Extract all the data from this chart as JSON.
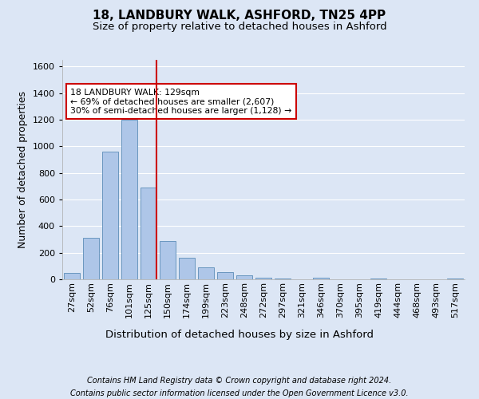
{
  "title": "18, LANDBURY WALK, ASHFORD, TN25 4PP",
  "subtitle": "Size of property relative to detached houses in Ashford",
  "xlabel": "Distribution of detached houses by size in Ashford",
  "ylabel": "Number of detached properties",
  "footnote1": "Contains HM Land Registry data © Crown copyright and database right 2024.",
  "footnote2": "Contains public sector information licensed under the Open Government Licence v3.0.",
  "bar_labels": [
    "27sqm",
    "52sqm",
    "76sqm",
    "101sqm",
    "125sqm",
    "150sqm",
    "174sqm",
    "199sqm",
    "223sqm",
    "248sqm",
    "272sqm",
    "297sqm",
    "321sqm",
    "346sqm",
    "370sqm",
    "395sqm",
    "419sqm",
    "444sqm",
    "468sqm",
    "493sqm",
    "517sqm"
  ],
  "bar_values": [
    50,
    310,
    960,
    1200,
    690,
    290,
    160,
    90,
    55,
    30,
    15,
    5,
    0,
    15,
    0,
    0,
    5,
    0,
    0,
    0,
    5
  ],
  "bar_color": "#aec6e8",
  "bar_edge_color": "#5b8db8",
  "highlight_index": 4,
  "highlight_color": "#cc0000",
  "annotation_text": "18 LANDBURY WALK: 129sqm\n← 69% of detached houses are smaller (2,607)\n30% of semi-detached houses are larger (1,128) →",
  "annotation_box_color": "#ffffff",
  "annotation_box_edge": "#cc0000",
  "ylim": [
    0,
    1650
  ],
  "yticks": [
    0,
    200,
    400,
    600,
    800,
    1000,
    1200,
    1400,
    1600
  ],
  "bg_color": "#dce6f5",
  "grid_color": "#ffffff",
  "title_fontsize": 11,
  "subtitle_fontsize": 9.5,
  "ylabel_fontsize": 9,
  "xlabel_fontsize": 9.5,
  "tick_fontsize": 8,
  "annotation_fontsize": 7.8,
  "footnote_fontsize": 7
}
